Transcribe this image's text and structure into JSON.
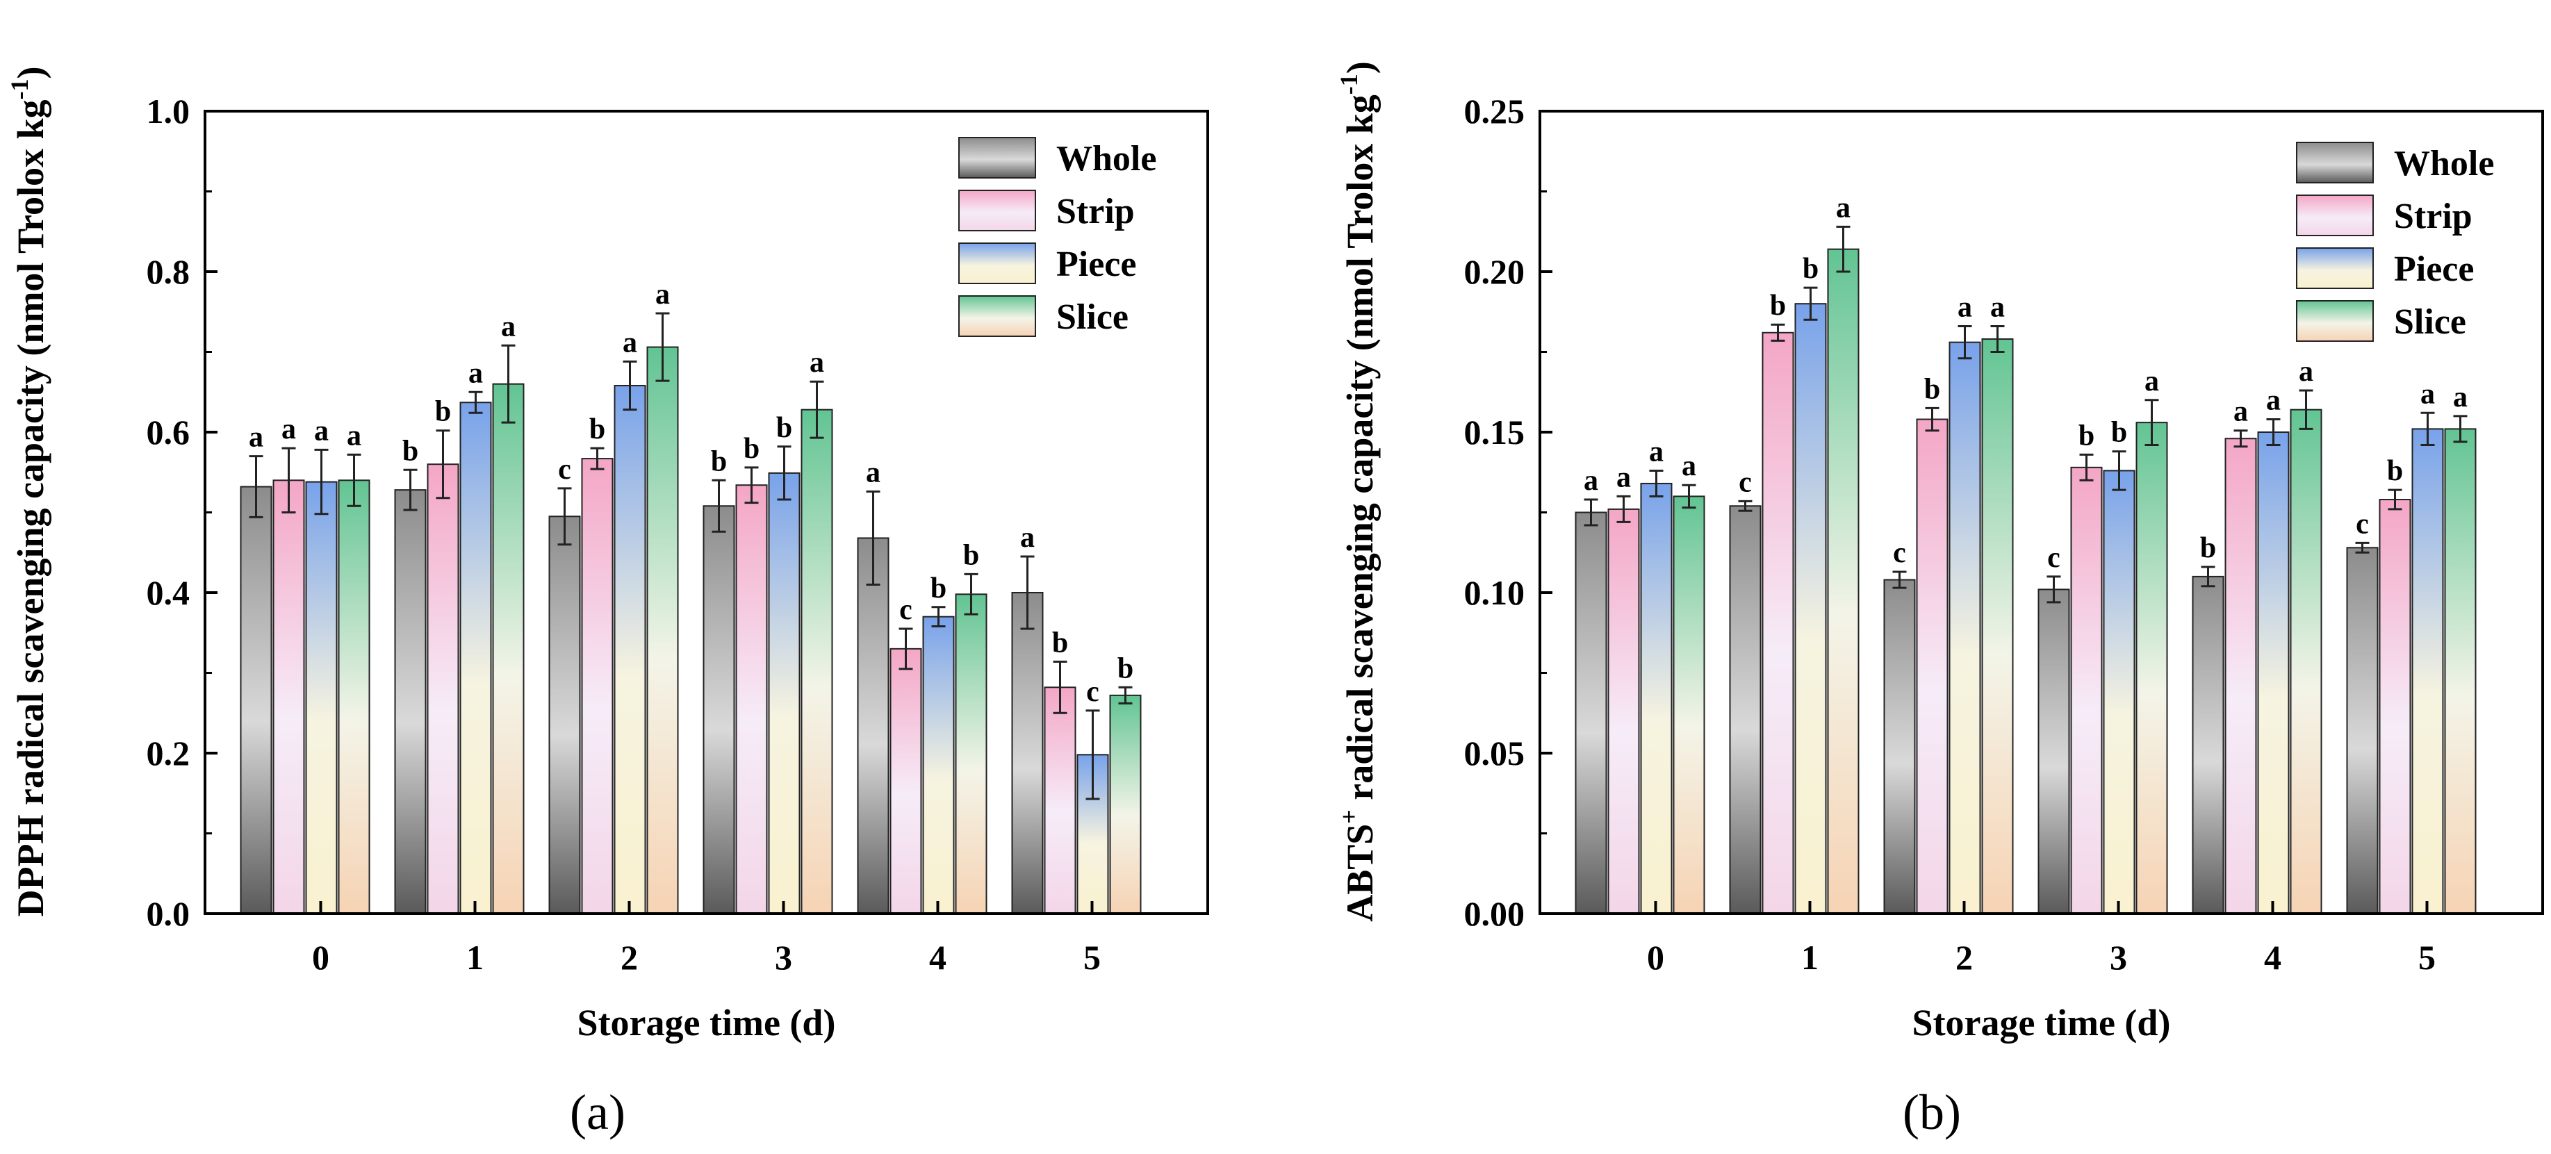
{
  "figure": {
    "panels": [
      "(a)",
      "(b)"
    ]
  },
  "chart_data": [
    {
      "type": "bar",
      "panel_label": "(a)",
      "title": "",
      "xlabel": "Storage time (d)",
      "ylabel": "DPPH radical scavenging capacity (nmol Trolox kg",
      "ylabel_sup": "-1",
      "ylabel_end": ")",
      "ylim": [
        0,
        1.0
      ],
      "yticks": [
        "0.0",
        "0.2",
        "0.4",
        "0.6",
        "0.8",
        "1.0"
      ],
      "categories": [
        "0",
        "1",
        "2",
        "3",
        "4",
        "5"
      ],
      "legend_position": "top-right",
      "series": [
        {
          "name": "Whole",
          "color": "#7a7a7a",
          "values": [
            0.532,
            0.528,
            0.495,
            0.508,
            0.468,
            0.4
          ],
          "errors": [
            0.038,
            0.025,
            0.035,
            0.032,
            0.058,
            0.045
          ],
          "letters": [
            "a",
            "b",
            "c",
            "b",
            "a",
            "a"
          ]
        },
        {
          "name": "Strip",
          "color": "#f2a3c7",
          "values": [
            0.54,
            0.56,
            0.567,
            0.534,
            0.33,
            0.282
          ],
          "errors": [
            0.04,
            0.042,
            0.013,
            0.022,
            0.025,
            0.032
          ],
          "letters": [
            "a",
            "b",
            "b",
            "b",
            "c",
            "b"
          ]
        },
        {
          "name": "Piece",
          "color": "#6e9de8",
          "values": [
            0.538,
            0.637,
            0.658,
            0.549,
            0.37,
            0.198
          ],
          "errors": [
            0.04,
            0.013,
            0.03,
            0.033,
            0.012,
            0.055
          ],
          "letters": [
            "a",
            "a",
            "a",
            "b",
            "b",
            "c"
          ]
        },
        {
          "name": "Slice",
          "color": "#5fc48d",
          "values": [
            0.54,
            0.66,
            0.706,
            0.628,
            0.398,
            0.272
          ],
          "errors": [
            0.032,
            0.048,
            0.042,
            0.035,
            0.025,
            0.01
          ],
          "letters": [
            "a",
            "a",
            "a",
            "a",
            "b",
            "b"
          ]
        }
      ]
    },
    {
      "type": "bar",
      "panel_label": "(b)",
      "title": "",
      "xlabel": "Storage time (d)",
      "ylabel_prefix": "ABTS",
      "ylabel_prefix_sup": "+",
      "ylabel": " radical scavenging capacity (nmol Trolox kg",
      "ylabel_sup": "-1",
      "ylabel_end": ")",
      "ylim": [
        0,
        0.25
      ],
      "yticks": [
        "0.00",
        "0.05",
        "0.10",
        "0.15",
        "0.20",
        "0.25"
      ],
      "categories": [
        "0",
        "1",
        "2",
        "3",
        "4",
        "5"
      ],
      "legend_position": "top-right",
      "series": [
        {
          "name": "Whole",
          "color": "#7a7a7a",
          "values": [
            0.125,
            0.127,
            0.104,
            0.101,
            0.105,
            0.114
          ],
          "errors": [
            0.004,
            0.0015,
            0.0025,
            0.004,
            0.003,
            0.0015
          ],
          "letters": [
            "a",
            "c",
            "c",
            "c",
            "b",
            "c"
          ]
        },
        {
          "name": "Strip",
          "color": "#f2a3c7",
          "values": [
            0.126,
            0.181,
            0.154,
            0.139,
            0.148,
            0.129
          ],
          "errors": [
            0.004,
            0.0025,
            0.0035,
            0.004,
            0.0025,
            0.003
          ],
          "letters": [
            "a",
            "b",
            "b",
            "b",
            "a",
            "b"
          ]
        },
        {
          "name": "Piece",
          "color": "#6e9de8",
          "values": [
            0.134,
            0.19,
            0.178,
            0.138,
            0.15,
            0.151
          ],
          "errors": [
            0.004,
            0.005,
            0.005,
            0.006,
            0.004,
            0.005
          ],
          "letters": [
            "a",
            "b",
            "a",
            "b",
            "a",
            "a"
          ]
        },
        {
          "name": "Slice",
          "color": "#5fc48d",
          "values": [
            0.13,
            0.207,
            0.179,
            0.153,
            0.157,
            0.151
          ],
          "errors": [
            0.0035,
            0.007,
            0.004,
            0.007,
            0.006,
            0.004
          ],
          "letters": [
            "a",
            "a",
            "a",
            "a",
            "a",
            "a"
          ]
        }
      ]
    }
  ]
}
